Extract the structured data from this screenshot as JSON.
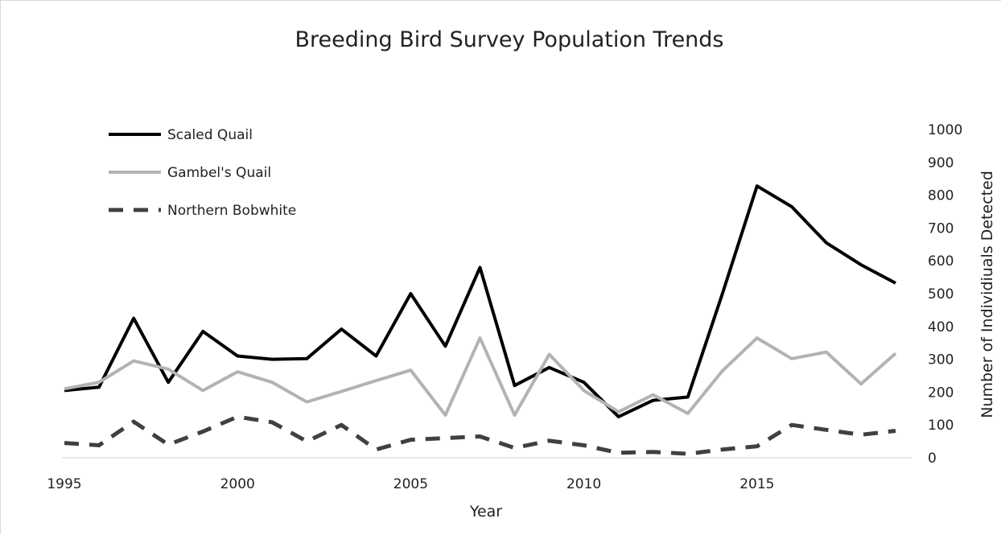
{
  "chart_data": {
    "type": "line",
    "title": "Breeding Bird Survey Population Trends",
    "xlabel": "Year",
    "ylabel": "Number of Individiuals Detected",
    "x": [
      1995,
      1996,
      1997,
      1998,
      1999,
      2000,
      2001,
      2002,
      2003,
      2004,
      2005,
      2006,
      2007,
      2008,
      2009,
      2010,
      2011,
      2012,
      2013,
      2014,
      2015,
      2016,
      2017,
      2018,
      2019
    ],
    "x_ticks": [
      1995,
      2000,
      2005,
      2010,
      2015
    ],
    "y_ticks": [
      0,
      100,
      200,
      300,
      400,
      500,
      600,
      700,
      800,
      900,
      1000
    ],
    "xlim": [
      1995,
      2019
    ],
    "ylim": [
      0,
      1000
    ],
    "y_axis_side": "right",
    "grid": false,
    "legend_placement": "top-left",
    "series": [
      {
        "name": "Scaled Quail",
        "color": "#000000",
        "style": "solid",
        "values": [
          205,
          215,
          425,
          230,
          385,
          310,
          300,
          302,
          392,
          310,
          500,
          340,
          580,
          220,
          275,
          230,
          125,
          175,
          185,
          500,
          828,
          765,
          655,
          588,
          532
        ]
      },
      {
        "name": "Gambel's Quail",
        "color": "#b3b3b3",
        "style": "solid",
        "values": [
          210,
          230,
          295,
          270,
          205,
          262,
          230,
          170,
          202,
          235,
          267,
          130,
          365,
          130,
          315,
          205,
          140,
          192,
          135,
          265,
          365,
          302,
          322,
          225,
          318
        ]
      },
      {
        "name": "Northern Bobwhite",
        "color": "#404040",
        "style": "dashed",
        "values": [
          45,
          38,
          110,
          40,
          80,
          125,
          108,
          50,
          100,
          25,
          55,
          60,
          65,
          30,
          52,
          38,
          15,
          18,
          12,
          25,
          35,
          100,
          85,
          70,
          82
        ]
      }
    ]
  }
}
